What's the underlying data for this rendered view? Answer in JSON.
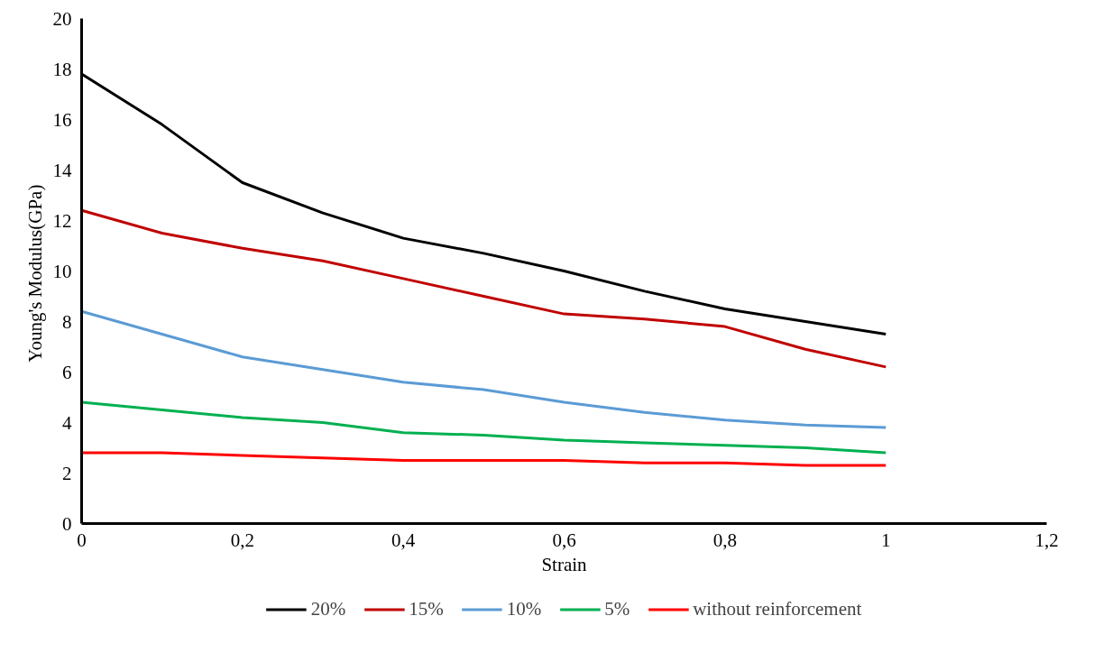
{
  "chart_data": {
    "type": "line",
    "xlabel": "Strain",
    "ylabel": "Young's  Modulus(GPa)",
    "x": [
      0,
      0.1,
      0.2,
      0.3,
      0.4,
      0.5,
      0.6,
      0.7,
      0.8,
      0.9,
      1.0
    ],
    "series": [
      {
        "name": "20%",
        "color": "#000000",
        "values": [
          17.8,
          15.8,
          13.5,
          12.3,
          11.3,
          10.7,
          10.0,
          9.2,
          8.5,
          8.0,
          7.5
        ]
      },
      {
        "name": "15%",
        "color": "#c00000",
        "values": [
          12.4,
          11.5,
          10.9,
          10.4,
          9.7,
          9.0,
          8.3,
          8.1,
          7.8,
          6.9,
          6.2
        ]
      },
      {
        "name": "10%",
        "color": "#5b9bd5",
        "values": [
          8.4,
          7.5,
          6.6,
          6.1,
          5.6,
          5.3,
          4.8,
          4.4,
          4.1,
          3.9,
          3.8
        ]
      },
      {
        "name": "5%",
        "color": "#00b050",
        "values": [
          4.8,
          4.5,
          4.2,
          4.0,
          3.6,
          3.5,
          3.3,
          3.2,
          3.1,
          3.0,
          2.8
        ]
      },
      {
        "name": "without reinforcement",
        "color": "#ff0000",
        "values": [
          2.8,
          2.8,
          2.7,
          2.6,
          2.5,
          2.5,
          2.5,
          2.4,
          2.4,
          2.3,
          2.3
        ]
      }
    ],
    "xlim": [
      0,
      1.2
    ],
    "xticks": [
      0,
      {
        "value": 0.2,
        "label": "0,2"
      },
      {
        "value": 0.4,
        "label": "0,4"
      },
      {
        "value": 0.6,
        "label": "0,6"
      },
      {
        "value": 0.8,
        "label": "0,8"
      },
      1,
      {
        "value": 1.2,
        "label": "1,2"
      }
    ],
    "ylim": [
      0,
      20
    ],
    "yticks": [
      0,
      2,
      4,
      6,
      8,
      10,
      12,
      14,
      16,
      18,
      20
    ],
    "grid": false,
    "legend": "bottom",
    "marker": "none",
    "line_style": "solid"
  }
}
